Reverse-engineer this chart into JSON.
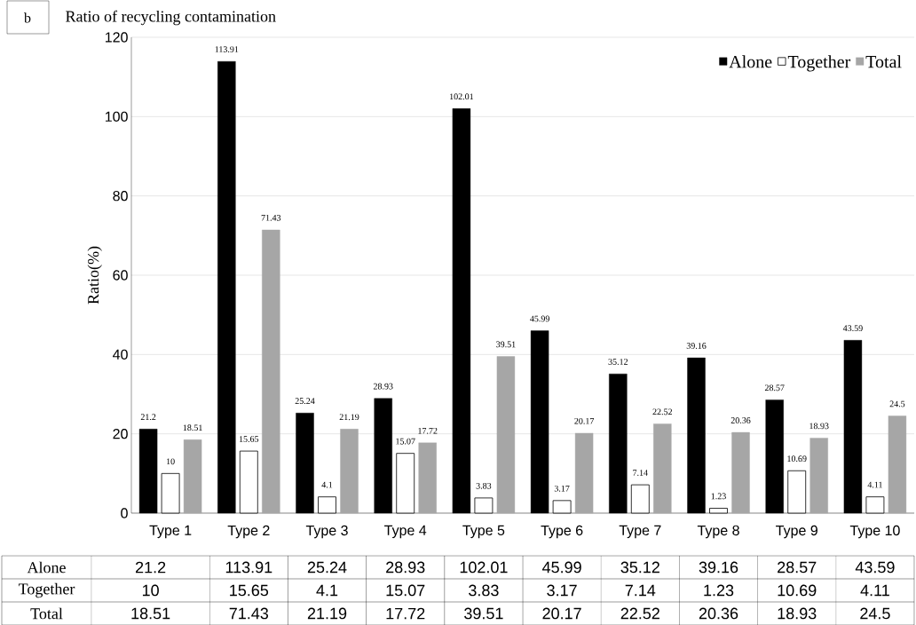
{
  "chart_data": {
    "type": "bar",
    "title": "Ratio of recycling contamination",
    "ylabel": "Ratio(%)",
    "annotations": [
      "b"
    ],
    "categories": [
      "Type 1",
      "Type 2",
      "Type 3",
      "Type 4",
      "Type 5",
      "Type 6",
      "Type 7",
      "Type 8",
      "Type 9",
      "Type 10"
    ],
    "series": [
      {
        "name": "Alone",
        "color": "#000000",
        "values": [
          21.2,
          113.91,
          25.24,
          28.93,
          102.01,
          45.99,
          35.12,
          39.16,
          28.57,
          43.59
        ],
        "value_labels": [
          "21.2",
          "113.91",
          "25.24",
          "28.93",
          "102.01",
          "45.99",
          "35.12",
          "39.16",
          "28.57",
          "43.59"
        ]
      },
      {
        "name": "Together",
        "color": "#ffffff",
        "values": [
          10,
          15.65,
          4.1,
          15.07,
          3.83,
          3.17,
          7.14,
          1.23,
          10.69,
          4.11
        ],
        "value_labels": [
          "10",
          "15.65",
          "4.1",
          "15.07",
          "3.83",
          "3.17",
          "7.14",
          "1.23",
          "10.69",
          "4.11"
        ]
      },
      {
        "name": "Total",
        "color": "#a6a6a6",
        "values": [
          18.51,
          71.43,
          21.19,
          17.72,
          39.51,
          20.17,
          22.52,
          20.36,
          18.93,
          24.5
        ],
        "value_labels": [
          "18.51",
          "71.43",
          "21.19",
          "17.72",
          "39.51",
          "20.17",
          "22.52",
          "20.36",
          "18.93",
          "24.5"
        ]
      }
    ],
    "ylim": [
      0,
      120
    ],
    "yticks": [
      0,
      20,
      40,
      60,
      80,
      100,
      120
    ],
    "grid": "y",
    "legend": "top right",
    "data_labels": true
  }
}
